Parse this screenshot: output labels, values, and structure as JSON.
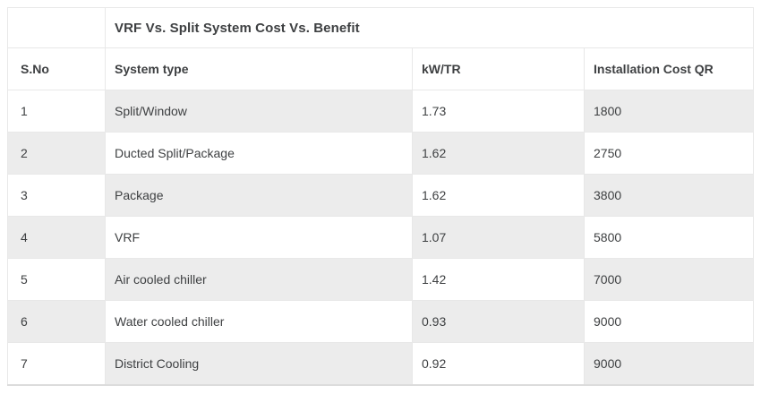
{
  "table": {
    "title": "VRF Vs. Split System Cost Vs. Benefit",
    "columns": {
      "sno": "S.No",
      "system_type": "System type",
      "kw_tr": "kW/TR",
      "installation_cost_qr": "Installation Cost QR"
    },
    "rows": [
      {
        "sno": "1",
        "system_type": "Split/Window",
        "kw_tr": "1.73",
        "installation_cost_qr": "1800"
      },
      {
        "sno": "2",
        "system_type": "Ducted Split/Package",
        "kw_tr": "1.62",
        "installation_cost_qr": "2750"
      },
      {
        "sno": "3",
        "system_type": "Package",
        "kw_tr": "1.62",
        "installation_cost_qr": "3800"
      },
      {
        "sno": "4",
        "system_type": "VRF",
        "kw_tr": "1.07",
        "installation_cost_qr": "5800"
      },
      {
        "sno": "5",
        "system_type": "Air cooled chiller",
        "kw_tr": "1.42",
        "installation_cost_qr": "7000"
      },
      {
        "sno": "6",
        "system_type": "Water cooled chiller",
        "kw_tr": "0.93",
        "installation_cost_qr": "9000"
      },
      {
        "sno": "7",
        "system_type": "District Cooling",
        "kw_tr": "0.92",
        "installation_cost_qr": "9000"
      }
    ]
  },
  "colors": {
    "stripe": "#ececec",
    "border": "#e8e8e8",
    "text": "#3e4042"
  }
}
